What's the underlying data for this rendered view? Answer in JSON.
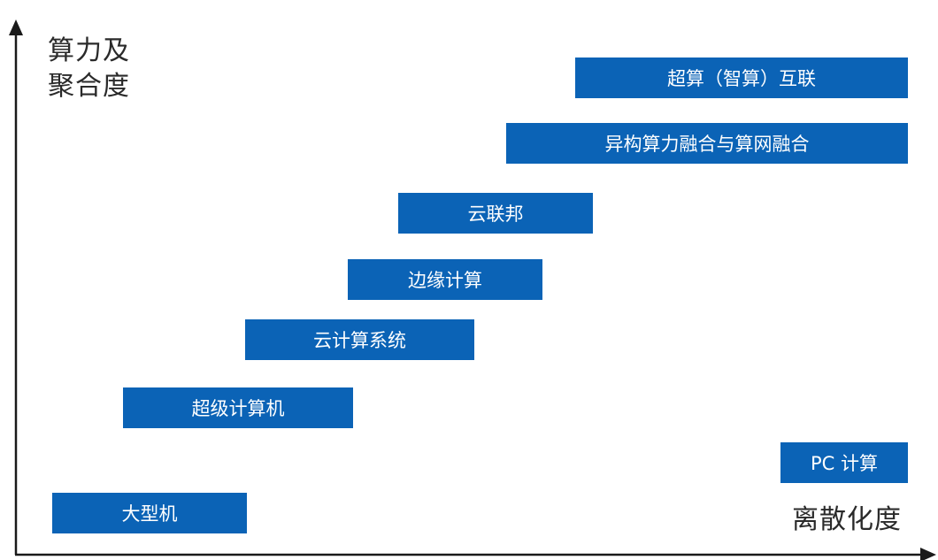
{
  "y_axis_title": [
    "算力及",
    "聚合度"
  ],
  "x_axis_title": "离散化度",
  "bar_color": "#0b63b6",
  "axis_color": "#1a1a1a",
  "stages": [
    {
      "label": "大型机"
    },
    {
      "label": "超级计算机"
    },
    {
      "label": "云计算系统"
    },
    {
      "label": "边缘计算"
    },
    {
      "label": "云联邦"
    },
    {
      "label": "异构算力融合与算网融合"
    },
    {
      "label": "超算（智算）互联"
    },
    {
      "label": "PC 计算"
    }
  ]
}
